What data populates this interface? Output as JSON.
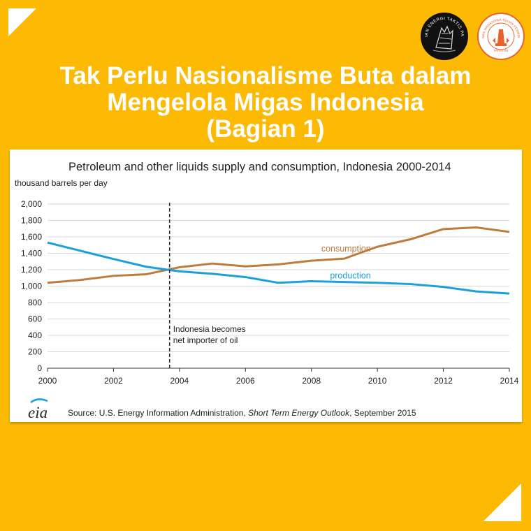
{
  "headline": {
    "line1": "Tak Perlu Nasionalisme Buta dalam",
    "line2": "Mengelola Migas Indonesia",
    "line3": "(Bagian 1)"
  },
  "logos": {
    "left_text": "KAJIAN ENERGI TAKTIS PATRA",
    "right_text": "HIMPUNAN MAHASISWA TEKNIK PERMINYAKAN",
    "right_label": "PATRA ITB"
  },
  "source": {
    "prefix": "Source: U.S. Energy Information Administration, ",
    "publication": "Short Term Energy Outlook",
    "suffix": ", September 2015",
    "logo_text": "eia"
  },
  "chart_data": {
    "type": "line",
    "title": "Petroleum and other liquids supply and consumption, Indonesia 2000-2014",
    "ylabel": "thousand barrels per day",
    "xlabel": "",
    "xlim": [
      2000,
      2014
    ],
    "ylim": [
      0,
      2000
    ],
    "x_ticks": [
      "2000",
      "2002",
      "2004",
      "2006",
      "2008",
      "2010",
      "2012",
      "2014"
    ],
    "y_ticks": [
      "0",
      "200",
      "400",
      "600",
      "800",
      "1,000",
      "1,200",
      "1,400",
      "1,600",
      "1,800",
      "2,000"
    ],
    "grid": true,
    "x": [
      2000,
      2001,
      2002,
      2003,
      2004,
      2005,
      2006,
      2007,
      2008,
      2009,
      2010,
      2011,
      2012,
      2013,
      2014
    ],
    "series": [
      {
        "name": "consumption",
        "color": "#BD7B3C",
        "values": [
          1040,
          1075,
          1125,
          1145,
          1230,
          1275,
          1240,
          1265,
          1310,
          1335,
          1480,
          1570,
          1695,
          1715,
          1660
        ]
      },
      {
        "name": "production",
        "color": "#1AA1DB",
        "values": [
          1530,
          1430,
          1330,
          1235,
          1180,
          1150,
          1110,
          1040,
          1060,
          1050,
          1040,
          1025,
          990,
          935,
          910
        ]
      }
    ],
    "annotation": {
      "x": 2003.7,
      "line1": "Indonesia  becomes",
      "line2": "net importer  of oil"
    }
  }
}
